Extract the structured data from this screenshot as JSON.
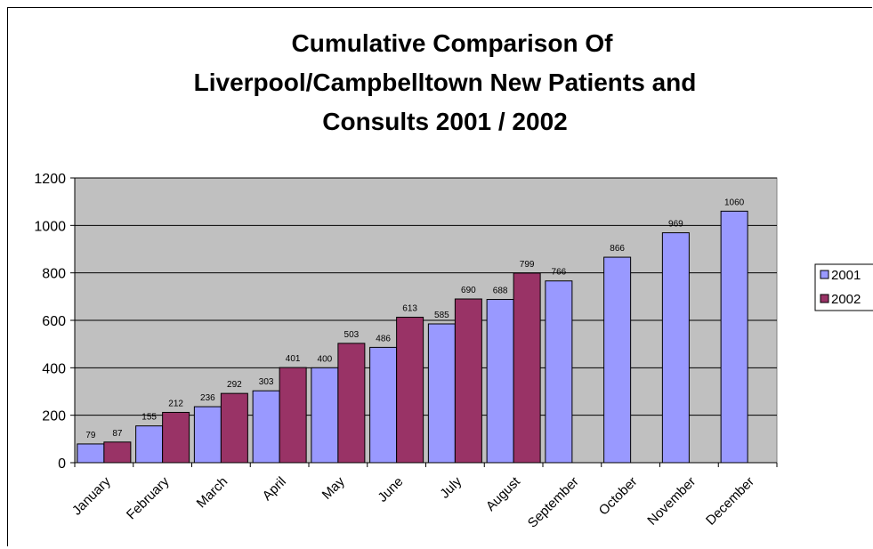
{
  "chart_data": {
    "type": "bar",
    "title_lines": [
      "Cumulative Comparison Of",
      "Liverpool/Campbelltown New Patients and",
      "Consults 2001 / 2002"
    ],
    "categories": [
      "January",
      "February",
      "March",
      "April",
      "May",
      "June",
      "July",
      "August",
      "September",
      "October",
      "November",
      "December"
    ],
    "series": [
      {
        "name": "2001",
        "color": "#9999FF",
        "values": [
          79,
          155,
          236,
          303,
          400,
          486,
          585,
          688,
          766,
          866,
          969,
          1060
        ]
      },
      {
        "name": "2002",
        "color": "#993366",
        "values": [
          87,
          212,
          292,
          401,
          503,
          613,
          690,
          799,
          null,
          null,
          null,
          null
        ]
      }
    ],
    "ylim": [
      0,
      1200
    ],
    "yticks": [
      0,
      200,
      400,
      600,
      800,
      1000,
      1200
    ],
    "grid": true,
    "plot_background": "#C0C0C0",
    "legend_position": "right"
  }
}
